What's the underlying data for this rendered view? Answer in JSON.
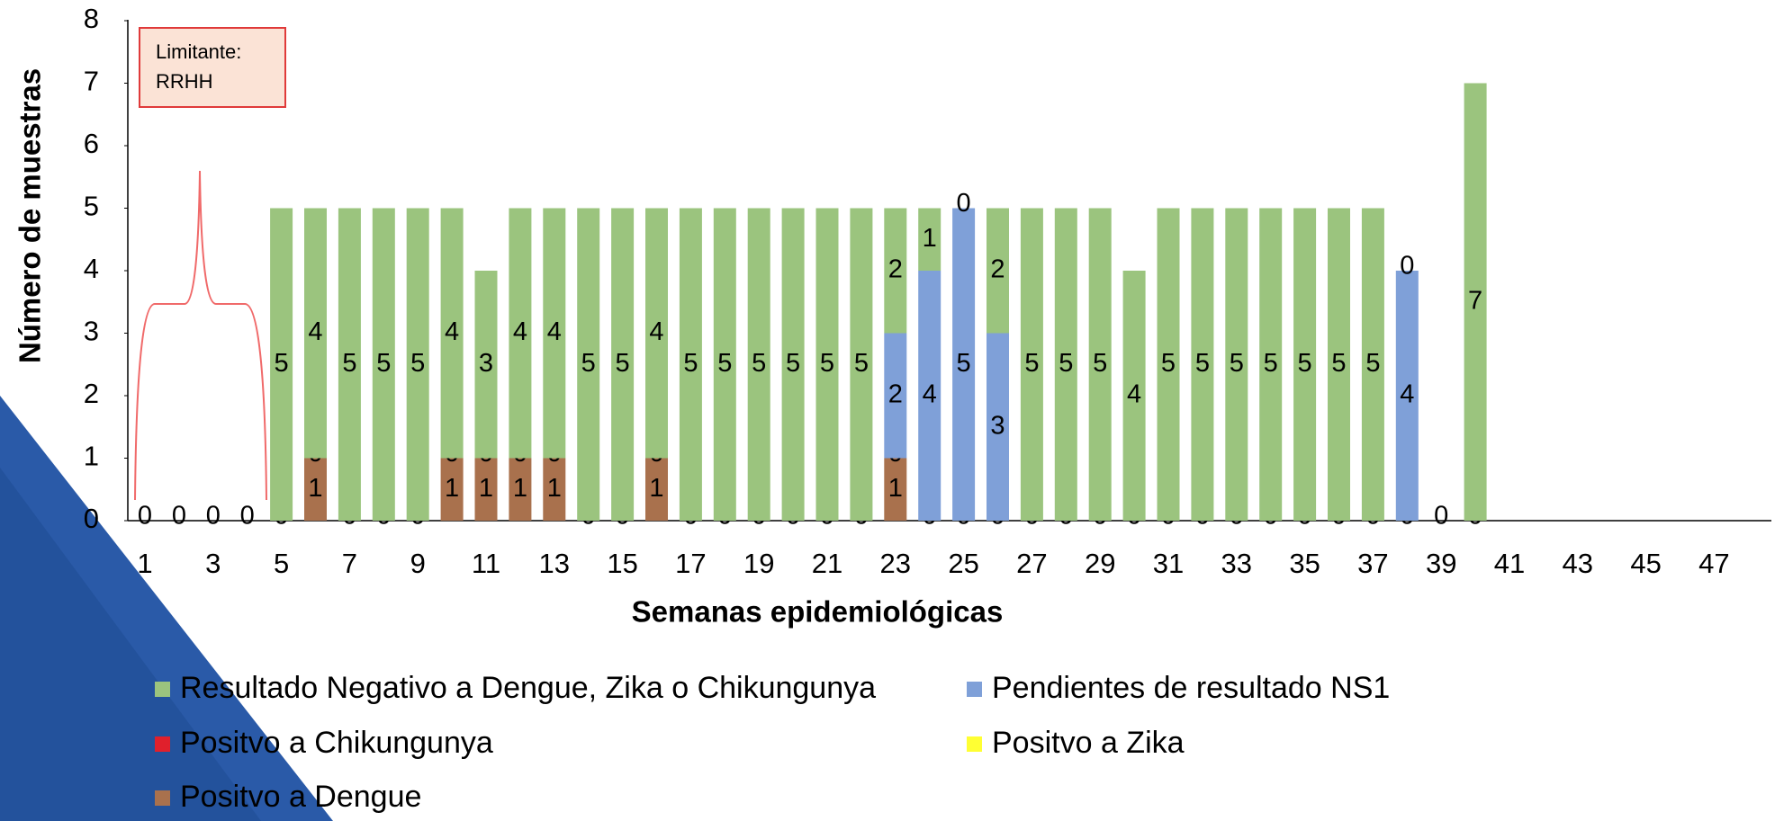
{
  "chart_data": {
    "type": "stacked_bar",
    "ylabel": "Número de muestras",
    "xlabel": "Semanas epidemiológicas",
    "annotation": [
      "Limitante:",
      "RRHH"
    ],
    "categories": [
      "1",
      null,
      "3",
      null,
      "5",
      null,
      "7",
      null,
      "9",
      null,
      "11",
      null,
      "13",
      null,
      "15",
      null,
      "17",
      null,
      "19",
      null,
      "21",
      null,
      "23",
      null,
      "25",
      null,
      "27",
      null,
      "29",
      null,
      "31",
      null,
      "33",
      null,
      "35",
      null,
      "37",
      null,
      "39",
      null,
      "41",
      null,
      "43",
      null,
      "45",
      null,
      "47",
      null
    ],
    "ylim": [
      0,
      8
    ],
    "yticks": [
      0,
      1,
      2,
      3,
      4,
      5,
      6,
      7,
      8
    ],
    "grid": false,
    "series": [
      {
        "name": "Resultado Negativo a Dengue, Zika o Chikungunya",
        "color": "#9bc47e",
        "values": [
          null,
          null,
          null,
          null,
          5,
          4,
          5,
          5,
          5,
          4,
          3,
          4,
          4,
          5,
          5,
          4,
          5,
          5,
          5,
          5,
          5,
          5,
          2,
          1,
          0,
          2,
          5,
          5,
          5,
          4,
          5,
          5,
          5,
          5,
          5,
          5,
          5,
          0,
          null,
          7,
          null,
          null,
          null,
          null,
          null,
          null,
          null,
          null
        ]
      },
      {
        "name": "Pendientes de resultado NS1",
        "color": "#7fa0d8",
        "values": [
          null,
          null,
          null,
          null,
          null,
          null,
          null,
          null,
          null,
          null,
          null,
          null,
          null,
          null,
          null,
          null,
          null,
          null,
          null,
          null,
          null,
          null,
          2,
          4,
          5,
          3,
          null,
          null,
          null,
          null,
          null,
          null,
          null,
          null,
          null,
          null,
          null,
          4,
          null,
          null,
          null,
          null,
          null,
          null,
          null,
          null,
          null,
          null
        ]
      },
      {
        "name": "Positvo a Chikungunya",
        "color": "#e0202c",
        "values": [
          null,
          null,
          null,
          null,
          null,
          0,
          null,
          null,
          null,
          0,
          0,
          0,
          0,
          null,
          null,
          0,
          null,
          null,
          null,
          null,
          null,
          null,
          0,
          null,
          null,
          null,
          null,
          null,
          null,
          null,
          null,
          null,
          null,
          null,
          null,
          null,
          null,
          null,
          null,
          null,
          null,
          null,
          null,
          null,
          null,
          null,
          null,
          null
        ]
      },
      {
        "name": "Positvo a  Zika",
        "color": "#ffff33",
        "values": [
          null,
          null,
          null,
          null,
          null,
          null,
          null,
          null,
          null,
          null,
          null,
          null,
          null,
          null,
          null,
          null,
          null,
          null,
          null,
          null,
          null,
          null,
          null,
          null,
          null,
          null,
          null,
          null,
          null,
          null,
          null,
          null,
          null,
          null,
          null,
          null,
          null,
          null,
          null,
          null,
          null,
          null,
          null,
          null,
          null,
          null,
          null,
          null
        ]
      },
      {
        "name": "Positvo a Dengue",
        "color": "#a9714d",
        "values": [
          0,
          0,
          0,
          0,
          0,
          1,
          0,
          0,
          0,
          1,
          1,
          1,
          1,
          0,
          0,
          1,
          0,
          0,
          0,
          0,
          0,
          0,
          1,
          0,
          0,
          0,
          0,
          0,
          0,
          0,
          0,
          0,
          0,
          0,
          0,
          0,
          0,
          0,
          0,
          0,
          null,
          null,
          null,
          null,
          null,
          null,
          null,
          null
        ]
      }
    ]
  }
}
